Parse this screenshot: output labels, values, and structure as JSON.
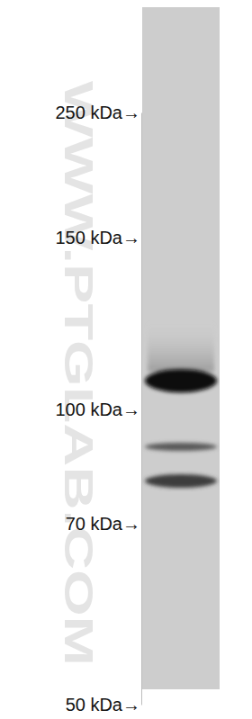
{
  "chart_data": {
    "type": "western_blot",
    "log": "y",
    "ylim": [
      50,
      250
    ],
    "yticks": [
      {
        "value": 50,
        "label": "50 kDa→"
      },
      {
        "value": 70,
        "label": "70 kDa→"
      },
      {
        "value": 100,
        "label": "100 kDa→"
      },
      {
        "value": 150,
        "label": "150 kDa→"
      },
      {
        "value": 250,
        "label": "250 kDa→"
      }
    ],
    "values": [
      107,
      89,
      80
    ],
    "annotations": [
      "WWW.PTGLAB.COM"
    ]
  }
}
